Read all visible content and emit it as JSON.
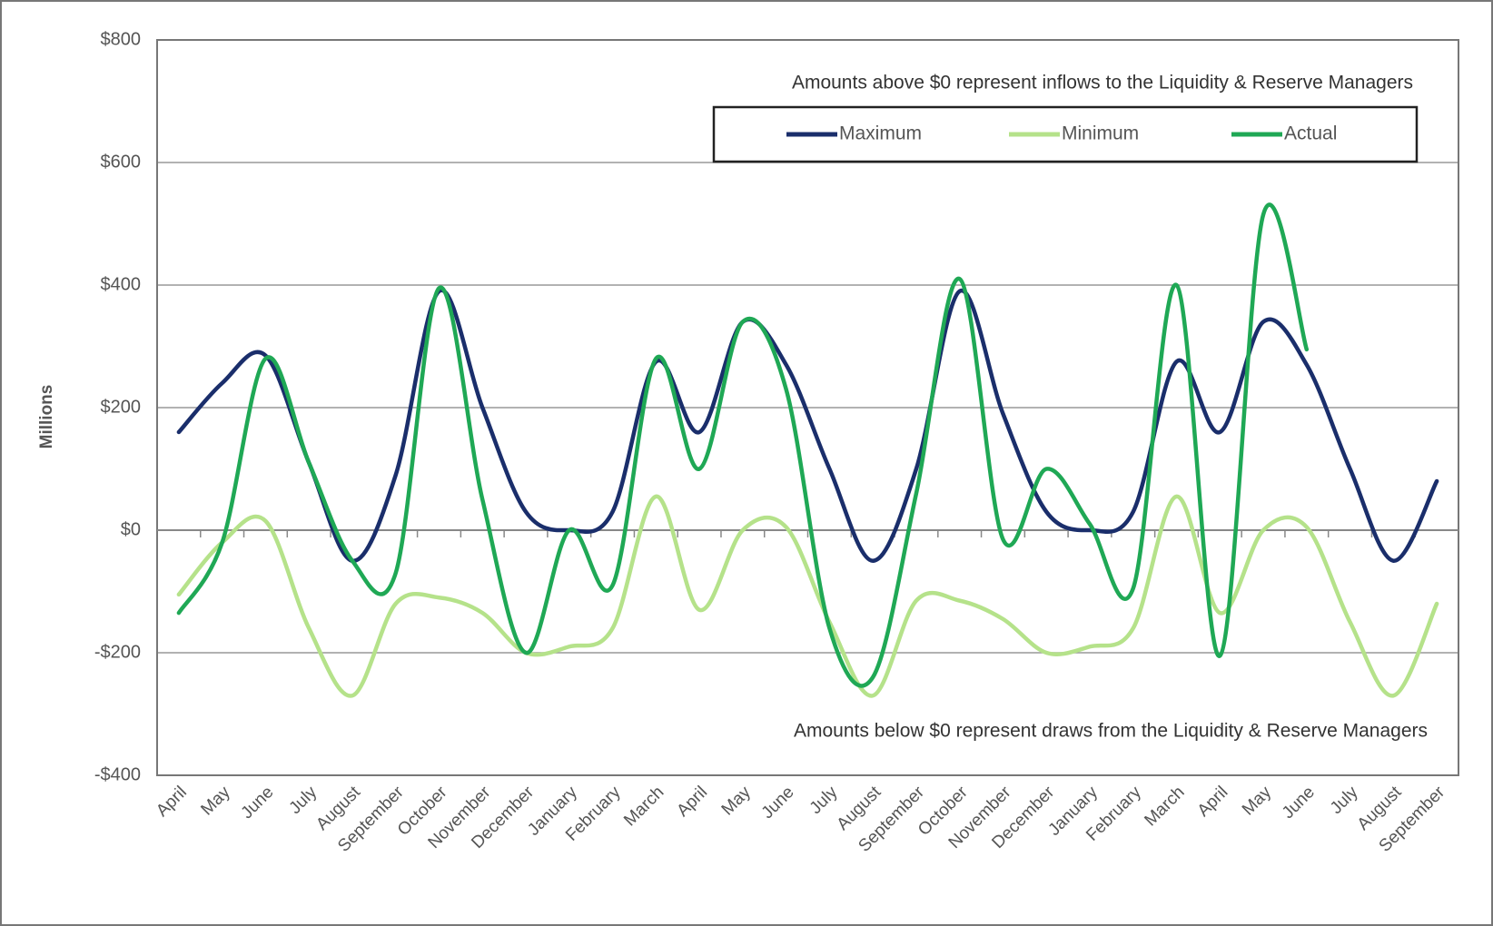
{
  "chart_data": {
    "type": "line",
    "y_label": "Millions",
    "annotations": [
      "Amounts above $0 represent inflows to the Liquidity & Reserve Managers",
      "Amounts below $0 represent draws from the Liquidity & Reserve Managers"
    ],
    "categories": [
      "April",
      "May",
      "June",
      "July",
      "August",
      "September",
      "October",
      "November",
      "December",
      "January",
      "February",
      "March",
      "April",
      "May",
      "June",
      "July",
      "August",
      "September",
      "October",
      "November",
      "December",
      "January",
      "February",
      "March",
      "April",
      "May",
      "June",
      "July",
      "August",
      "September"
    ],
    "series": [
      {
        "name": "Maximum",
        "color": "#1a2e6b",
        "values": [
          160,
          240,
          285,
          110,
          -50,
          90,
          390,
          200,
          30,
          0,
          30,
          275,
          160,
          340,
          270,
          100,
          -50,
          100,
          390,
          190,
          30,
          0,
          30,
          275,
          160,
          340,
          270,
          100,
          -50,
          80
        ]
      },
      {
        "name": "Minimum",
        "color": "#b5e28a",
        "values": [
          -105,
          -20,
          15,
          -160,
          -270,
          -120,
          -110,
          -135,
          -200,
          -190,
          -160,
          55,
          -130,
          0,
          5,
          -150,
          -270,
          -115,
          -115,
          -145,
          -200,
          -190,
          -160,
          55,
          -135,
          0,
          5,
          -150,
          -270,
          -120
        ]
      },
      {
        "name": "Actual",
        "color": "#1fa855",
        "values": [
          -135,
          -20,
          280,
          110,
          -50,
          -70,
          395,
          50,
          -200,
          0,
          -90,
          280,
          100,
          340,
          230,
          -160,
          -240,
          60,
          410,
          -15,
          100,
          10,
          -95,
          400,
          -205,
          515,
          295,
          null,
          null,
          null
        ]
      }
    ],
    "ylim": [
      -400,
      800
    ],
    "yticks": [
      {
        "value": -400,
        "label": "-$400"
      },
      {
        "value": -200,
        "label": "-$200"
      },
      {
        "value": 0,
        "label": "$0"
      },
      {
        "value": 200,
        "label": "$200"
      },
      {
        "value": 400,
        "label": "$400"
      },
      {
        "value": 600,
        "label": "$600"
      },
      {
        "value": 800,
        "label": "$800"
      }
    ],
    "grid": true,
    "legend": "top-right"
  }
}
